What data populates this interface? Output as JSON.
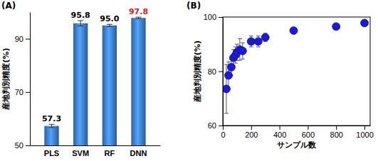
{
  "chart_data": [
    {
      "type": "bar",
      "title": "(A)",
      "y_label": "産地判別精度(%)",
      "categories": [
        "PLS",
        "SVM",
        "RF",
        "DNN"
      ],
      "values": [
        57.3,
        95.8,
        95.0,
        97.8
      ],
      "value_labels": [
        "57.3",
        "95.8",
        "95.0",
        "97.8"
      ],
      "errors": [
        0.6,
        1.0,
        0.4,
        0.3
      ],
      "color": "#3a78c8",
      "ylim": [
        50,
        100
      ],
      "yticks": [
        50,
        70,
        90
      ],
      "data_labels": true,
      "grid": false
    },
    {
      "type": "scatter",
      "title": "(B)",
      "x_label": "サンプル数",
      "y_label": "産地判別精度(%)",
      "x": [
        25,
        40,
        60,
        75,
        90,
        100,
        120,
        140,
        200,
        250,
        300,
        500,
        800,
        1000
      ],
      "values": [
        73.5,
        78.5,
        81.5,
        85,
        86,
        87,
        88,
        87.5,
        91,
        91,
        92.5,
        95,
        96.5,
        97.8
      ],
      "errors": [
        9,
        5,
        3,
        3,
        3,
        3,
        4,
        3,
        2,
        2,
        1.5,
        0.5,
        0.5,
        0.5
      ],
      "color": "#1a1adb",
      "marker": "circle",
      "xlim": [
        0,
        1040
      ],
      "xticks": [
        0,
        200,
        400,
        600,
        800,
        1000
      ],
      "ylim": [
        60,
        100
      ],
      "yticks": [
        60,
        80,
        100
      ],
      "grid": false
    }
  ]
}
